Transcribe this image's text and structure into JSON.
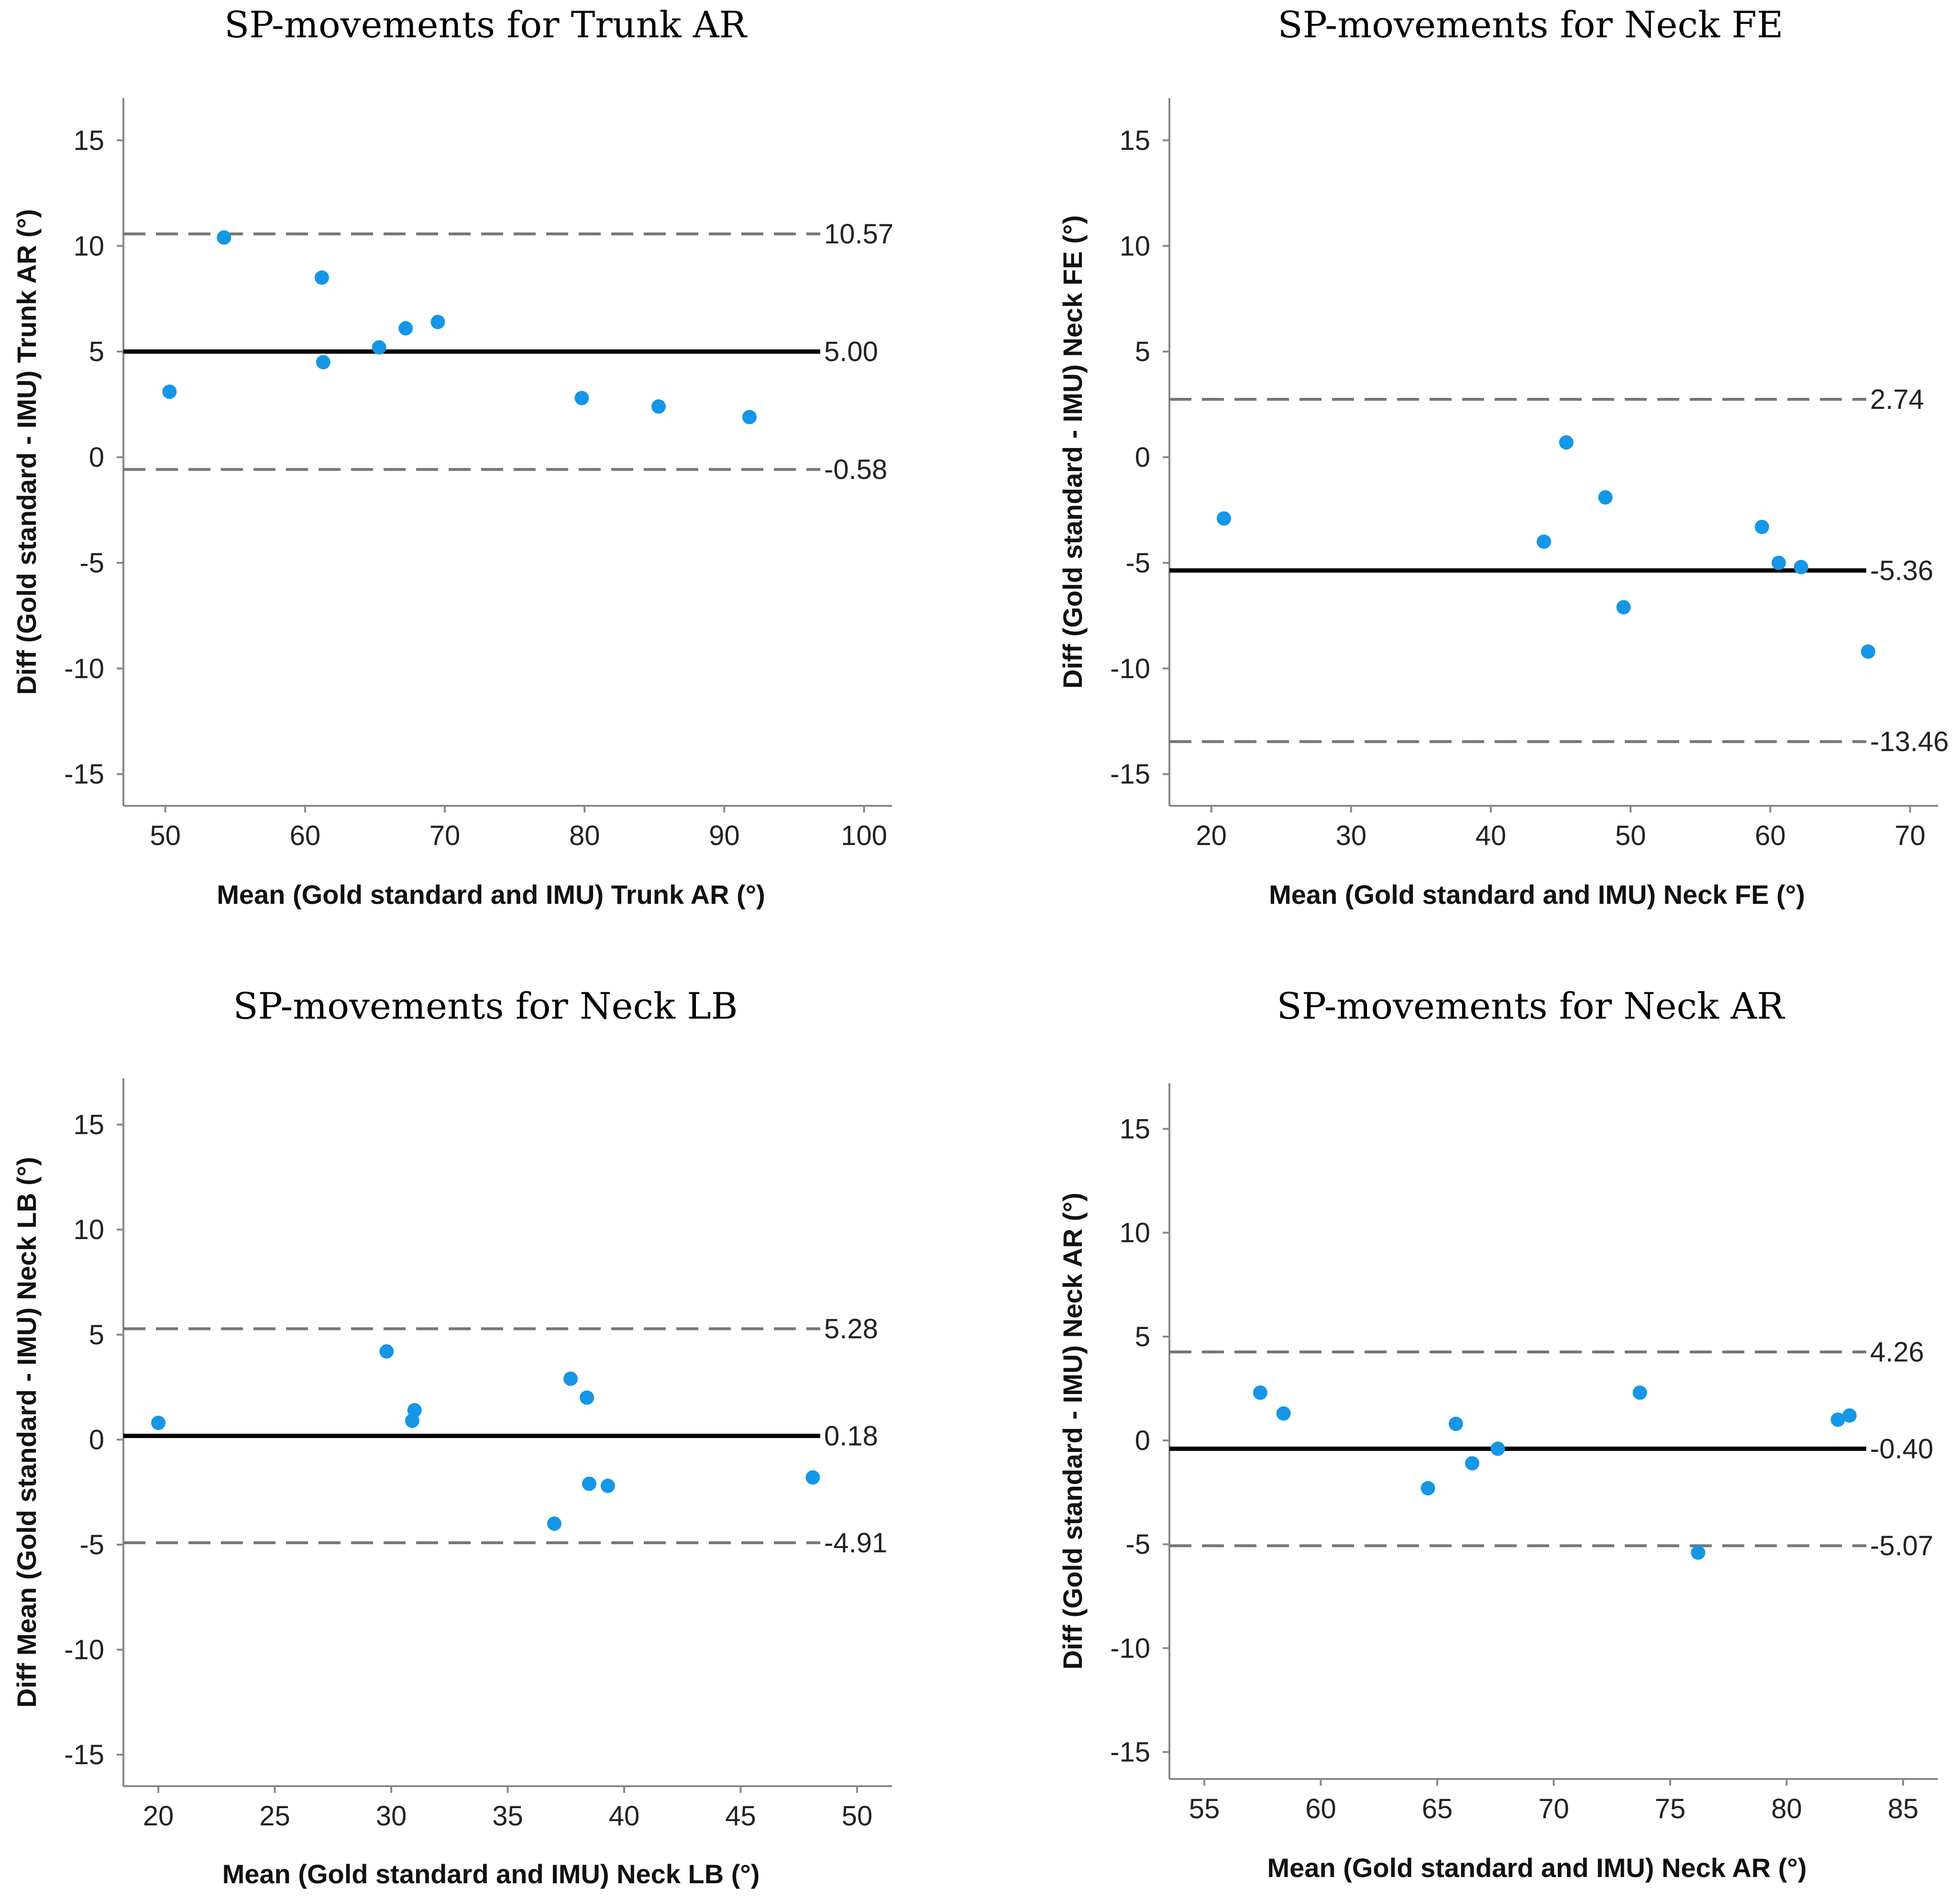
{
  "chart_data": [
    {
      "type": "scatter",
      "title": "SP-movements for Trunk AR",
      "xlabel": "Mean (Gold standard and IMU) Trunk AR (°)",
      "ylabel": "Diff (Gold standard - IMU) Trunk AR (°)",
      "xlim": [
        47,
        102
      ],
      "ylim": [
        -16.5,
        17
      ],
      "xticks": [
        50,
        60,
        70,
        80,
        90,
        100
      ],
      "yticks": [
        15,
        10,
        5,
        0,
        -5,
        -10,
        -15
      ],
      "x_tick_labels": [
        "50",
        "60",
        "70",
        "80",
        "90",
        "100"
      ],
      "y_tick_labels": [
        "15",
        "10",
        "5",
        "0",
        "-5",
        "-10",
        "-15"
      ],
      "mean": 5.0,
      "upper_loa": 10.57,
      "lower_loa": -0.58,
      "mean_label": "5.00",
      "upper_label": "10.57",
      "lower_label": "-0.58",
      "points": [
        [
          50.3,
          3.1
        ],
        [
          54.2,
          10.4
        ],
        [
          61.2,
          8.5
        ],
        [
          61.3,
          4.5
        ],
        [
          65.3,
          5.2
        ],
        [
          67.2,
          6.1
        ],
        [
          69.5,
          6.4
        ],
        [
          79.8,
          2.8
        ],
        [
          85.3,
          2.4
        ],
        [
          91.8,
          1.9
        ]
      ]
    },
    {
      "type": "scatter",
      "title": "SP-movements for Neck FE",
      "xlabel": "Mean (Gold standard and IMU) Neck FE (°)",
      "ylabel": "Diff (Gold standard - IMU) Neck FE (°)",
      "xlim": [
        17,
        72
      ],
      "ylim": [
        -16.5,
        17
      ],
      "xticks": [
        20,
        30,
        40,
        50,
        60,
        70
      ],
      "yticks": [
        15,
        10,
        5,
        0,
        -5,
        -10,
        -15
      ],
      "x_tick_labels": [
        "20",
        "30",
        "40",
        "50",
        "60",
        "70"
      ],
      "y_tick_labels": [
        "15",
        "10",
        "5",
        "0",
        "-5",
        "-10",
        "-15"
      ],
      "mean": -5.36,
      "upper_loa": 2.74,
      "lower_loa": -13.46,
      "mean_label": "-5.36",
      "upper_label": "2.74",
      "lower_label": "-13.46",
      "points": [
        [
          20.9,
          -2.9
        ],
        [
          43.8,
          -4.0
        ],
        [
          45.4,
          0.7
        ],
        [
          48.2,
          -1.9
        ],
        [
          49.5,
          -7.1
        ],
        [
          59.4,
          -3.3
        ],
        [
          60.6,
          -5.0
        ],
        [
          62.2,
          -5.2
        ],
        [
          67.0,
          -9.2
        ]
      ]
    },
    {
      "type": "scatter",
      "title": "SP-movements for Neck LB",
      "xlabel": "Mean (Gold standard and IMU) Neck LB (°)",
      "ylabel": "Diff Mean (Gold standard - IMU) Neck LB (°)",
      "xlim": [
        18.5,
        51.5
      ],
      "ylim": [
        -16.5,
        17.2
      ],
      "xticks": [
        20,
        25,
        30,
        35,
        40,
        45,
        50
      ],
      "yticks": [
        15,
        10,
        5,
        0,
        -5,
        -10,
        -15
      ],
      "x_tick_labels": [
        "20",
        "25",
        "30",
        "35",
        "40",
        "45",
        "50"
      ],
      "y_tick_labels": [
        "15",
        "10",
        "5",
        "0",
        "-5",
        "-10",
        "-15"
      ],
      "mean": 0.18,
      "upper_loa": 5.28,
      "lower_loa": -4.91,
      "mean_label": "0.18",
      "upper_label": "5.28",
      "lower_label": "-4.91",
      "points": [
        [
          20.0,
          0.8
        ],
        [
          29.8,
          4.2
        ],
        [
          30.9,
          0.9
        ],
        [
          31.0,
          1.4
        ],
        [
          37.0,
          -4.0
        ],
        [
          37.7,
          2.9
        ],
        [
          38.4,
          2.0
        ],
        [
          38.5,
          -2.1
        ],
        [
          39.3,
          -2.2
        ],
        [
          48.1,
          -1.8
        ]
      ]
    },
    {
      "type": "scatter",
      "title": "SP-movements for Neck AR",
      "xlabel": "Mean (Gold standard and IMU) Neck AR (°)",
      "ylabel": "Diff (Gold standard - IMU) Neck AR (°)",
      "xlim": [
        53.5,
        86.5
      ],
      "ylim": [
        -16.3,
        17.2
      ],
      "xticks": [
        55,
        60,
        65,
        70,
        75,
        80,
        85
      ],
      "yticks": [
        15,
        10,
        5,
        0,
        -5,
        -10,
        -15
      ],
      "x_tick_labels": [
        "55",
        "60",
        "65",
        "70",
        "75",
        "80",
        "85"
      ],
      "y_tick_labels": [
        "15",
        "10",
        "5",
        "0",
        "-5",
        "-10",
        "-15"
      ],
      "mean": -0.4,
      "upper_loa": 4.26,
      "lower_loa": -5.07,
      "mean_label": "-0.40",
      "upper_label": "4.26",
      "lower_label": "-5.07",
      "points": [
        [
          57.4,
          2.3
        ],
        [
          58.4,
          1.3
        ],
        [
          64.6,
          -2.3
        ],
        [
          65.8,
          0.8
        ],
        [
          66.5,
          -1.1
        ],
        [
          67.6,
          -0.4
        ],
        [
          73.7,
          2.3
        ],
        [
          76.2,
          -5.4
        ],
        [
          82.2,
          1.0
        ],
        [
          82.7,
          1.2
        ]
      ]
    }
  ]
}
